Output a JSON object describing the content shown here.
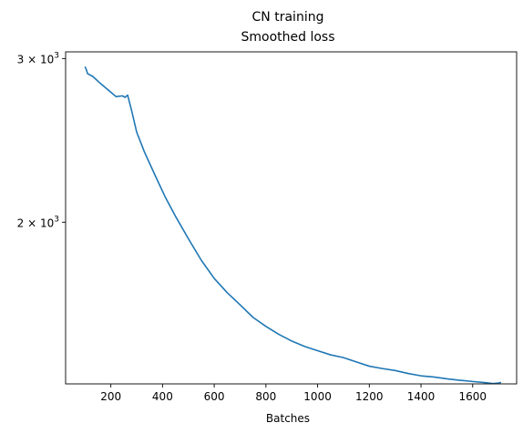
{
  "chart_data": {
    "type": "line",
    "title": "CN training",
    "subtitle": "Smoothed loss",
    "xlabel": "Batches",
    "ylabel": "",
    "y_scale": "log",
    "grid": false,
    "xlim": [
      25,
      1770
    ],
    "ylim": [
      1340,
      3050
    ],
    "x_ticks": [
      200,
      400,
      600,
      800,
      1000,
      1200,
      1400,
      1600
    ],
    "x_tick_labels": [
      "200",
      "400",
      "600",
      "800",
      "1000",
      "1200",
      "1400",
      "1600"
    ],
    "y_ticks": [
      {
        "value": 3000,
        "base": "3",
        "exp": "3"
      },
      {
        "value": 2000,
        "base": "2",
        "exp": "3"
      }
    ],
    "line_color": "#1f77b4",
    "series": [
      {
        "x": [
          100,
          105,
          110,
          130,
          160,
          200,
          220,
          245,
          255,
          265,
          280,
          300,
          330,
          370,
          410,
          450,
          500,
          550,
          600,
          650,
          700,
          750,
          800,
          850,
          900,
          950,
          1000,
          1050,
          1100,
          1150,
          1200,
          1250,
          1300,
          1350,
          1400,
          1450,
          1500,
          1550,
          1600,
          1650,
          1680,
          1700,
          1710
        ],
        "y": [
          2940,
          2920,
          2890,
          2870,
          2820,
          2760,
          2730,
          2735,
          2725,
          2740,
          2640,
          2500,
          2380,
          2250,
          2130,
          2030,
          1920,
          1820,
          1740,
          1680,
          1630,
          1580,
          1545,
          1515,
          1490,
          1470,
          1455,
          1440,
          1430,
          1415,
          1400,
          1392,
          1385,
          1375,
          1367,
          1363,
          1357,
          1352,
          1348,
          1344,
          1341,
          1343,
          1345
        ]
      }
    ]
  }
}
